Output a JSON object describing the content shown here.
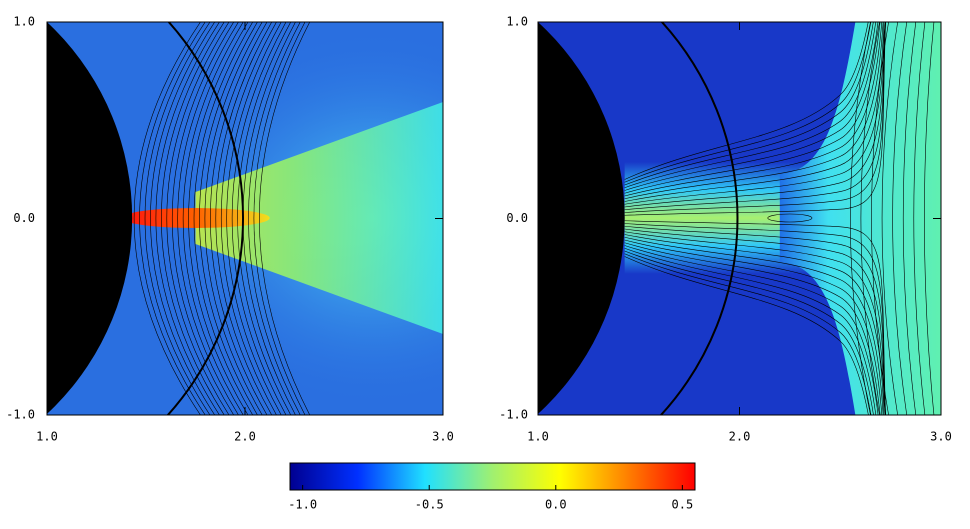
{
  "chart_data": [
    {
      "type": "heatmap",
      "xlim": [
        1,
        3
      ],
      "ylim": [
        -1,
        1
      ],
      "xticks": [
        {
          "value": 1,
          "label": "1.0"
        },
        {
          "value": 2,
          "label": "2.0"
        },
        {
          "value": 3,
          "label": "3.0"
        }
      ],
      "yticks": [
        {
          "value": -1,
          "label": "-1.0"
        },
        {
          "value": 0,
          "label": "0.0"
        },
        {
          "value": 1,
          "label": "1.0"
        }
      ]
    },
    {
      "type": "heatmap",
      "xlim": [
        1,
        3
      ],
      "ylim": [
        -1,
        1
      ],
      "xticks": [
        {
          "value": 1,
          "label": "1.0"
        },
        {
          "value": 2,
          "label": "2.0"
        },
        {
          "value": 3,
          "label": "3.0"
        }
      ],
      "yticks": [
        {
          "value": -1,
          "label": "-1.0"
        },
        {
          "value": 0,
          "label": "0.0"
        },
        {
          "value": 1,
          "label": "1.0"
        }
      ]
    },
    {
      "type": "colorbar",
      "xlim": [
        -1.05,
        0.55
      ],
      "colors": [
        "#000090",
        "#0030ff",
        "#20e0ff",
        "#a0f070",
        "#ffff00",
        "#ff8000",
        "#ff0000"
      ],
      "xticks": [
        {
          "value": -1,
          "label": "-1.0"
        },
        {
          "value": -0.5,
          "label": "-0.5"
        },
        {
          "value": 0,
          "label": "0.0"
        },
        {
          "value": 0.5,
          "label": "0.5"
        }
      ]
    }
  ]
}
